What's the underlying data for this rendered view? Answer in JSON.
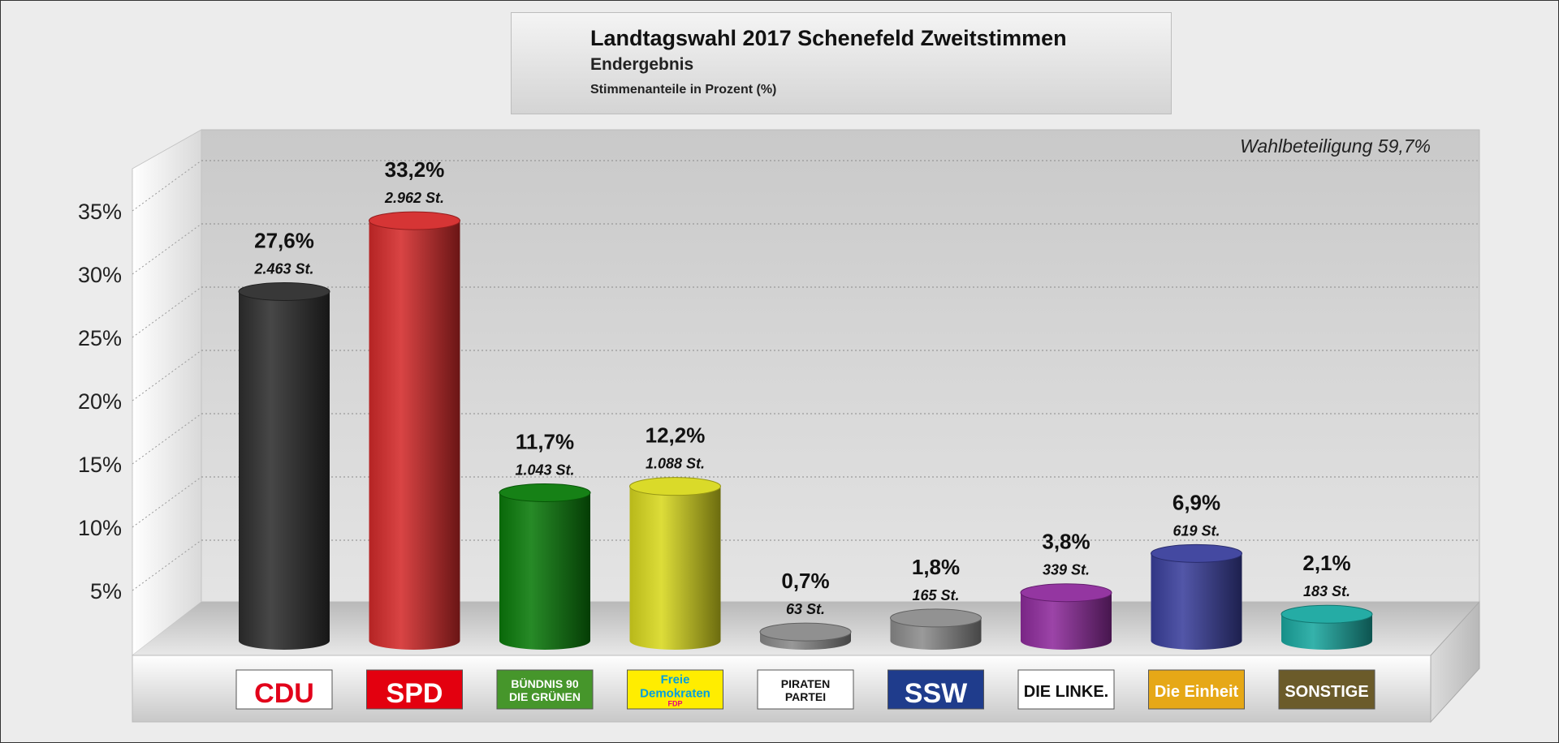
{
  "title": {
    "main": "Landtagswahl 2017 Schenefeld Zweitstimmen",
    "sub": "Endergebnis",
    "note": "Stimmenanteile in Prozent (%)"
  },
  "turnout_text": "Wahlbeteiligung 59,7%",
  "chart_data": {
    "type": "bar",
    "categories": [
      "CDU",
      "SPD",
      "BÜNDNIS 90 DIE GRÜNEN",
      "Freie Demokraten FDP",
      "PIRATEN PARTEI",
      "SSW",
      "DIE LINKE.",
      "Die Einheit",
      "SONSTIGE"
    ],
    "values": [
      27.6,
      33.2,
      11.7,
      12.2,
      0.7,
      1.8,
      3.8,
      6.9,
      2.1
    ],
    "value_labels": [
      "27,6%",
      "33,2%",
      "11,7%",
      "12,2%",
      "0,7%",
      "1,8%",
      "3,8%",
      "6,9%",
      "2,1%"
    ],
    "vote_labels": [
      "2.463 St.",
      "2.962 St.",
      "1.043 St.",
      "1.088 St.",
      "63 St.",
      "165 St.",
      "339 St.",
      "619 St.",
      "183 St."
    ],
    "colors": [
      "#2e2e2e",
      "#d42a2a",
      "#0a7a0a",
      "#d8d81e",
      "#8a8a8a",
      "#8c8c8c",
      "#8e2b9c",
      "#3a3f9c",
      "#1aa8a0"
    ],
    "yticks": [
      "5%",
      "10%",
      "15%",
      "20%",
      "25%",
      "30%",
      "35%"
    ],
    "ylim": [
      0,
      38
    ],
    "grid": true,
    "xlabel": "",
    "ylabel": ""
  },
  "logos": [
    {
      "text": "CDU",
      "bg": "#ffffff",
      "fg": "#e2001a"
    },
    {
      "text": "SPD",
      "bg": "#e3000f",
      "fg": "#ffffff"
    },
    {
      "text": "BÜNDNIS 90",
      "text2": "DIE GRÜNEN",
      "bg": "#46962b",
      "fg": "#ffffff"
    },
    {
      "text": "Freie",
      "text2": "Demokraten",
      "text3": "FDP",
      "bg": "#ffed00",
      "fg": "#009ee0"
    },
    {
      "text": "PIRATEN",
      "text2": "PARTEI",
      "bg": "#ffffff",
      "fg": "#111111"
    },
    {
      "text": "SSW",
      "bg": "#1f3c8c",
      "fg": "#ffffff"
    },
    {
      "text": "DIE LINKE.",
      "bg": "#ffffff",
      "fg": "#111111"
    },
    {
      "text": "Die Einheit",
      "bg": "#e6a817",
      "fg": "#ffffff"
    },
    {
      "text": "SONSTIGE",
      "bg": "#6b5b2a",
      "fg": "#ffffff"
    }
  ]
}
